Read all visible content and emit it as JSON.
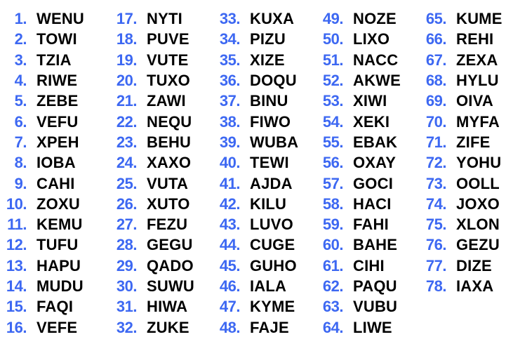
{
  "colors": {
    "number": "#3d68f2",
    "word": "#000000",
    "background": "#ffffff"
  },
  "items": [
    {
      "n": "1.",
      "w": "WENU"
    },
    {
      "n": "2.",
      "w": "TOWI"
    },
    {
      "n": "3.",
      "w": "TZIA"
    },
    {
      "n": "4.",
      "w": "RIWE"
    },
    {
      "n": "5.",
      "w": "ZEBE"
    },
    {
      "n": "6.",
      "w": "VEFU"
    },
    {
      "n": "7.",
      "w": "XPEH"
    },
    {
      "n": "8.",
      "w": "IOBA"
    },
    {
      "n": "9.",
      "w": "CAHI"
    },
    {
      "n": "10.",
      "w": "ZOXU"
    },
    {
      "n": "11.",
      "w": "KEMU"
    },
    {
      "n": "12.",
      "w": "TUFU"
    },
    {
      "n": "13.",
      "w": "HAPU"
    },
    {
      "n": "14.",
      "w": "MUDU"
    },
    {
      "n": "15.",
      "w": "FAQI"
    },
    {
      "n": "16.",
      "w": "VEFE"
    },
    {
      "n": "17.",
      "w": "NYTI"
    },
    {
      "n": "18.",
      "w": "PUVE"
    },
    {
      "n": "19.",
      "w": "VUTE"
    },
    {
      "n": "20.",
      "w": "TUXO"
    },
    {
      "n": "21.",
      "w": "ZAWI"
    },
    {
      "n": "22.",
      "w": "NEQU"
    },
    {
      "n": "23.",
      "w": "BEHU"
    },
    {
      "n": "24.",
      "w": "XAXO"
    },
    {
      "n": "25.",
      "w": "VUTA"
    },
    {
      "n": "26.",
      "w": "XUTO"
    },
    {
      "n": "27.",
      "w": "FEZU"
    },
    {
      "n": "28.",
      "w": "GEGU"
    },
    {
      "n": "29.",
      "w": "QADO"
    },
    {
      "n": "30.",
      "w": "SUWU"
    },
    {
      "n": "31.",
      "w": "HIWA"
    },
    {
      "n": "32.",
      "w": "ZUKE"
    },
    {
      "n": "33.",
      "w": "KUXA"
    },
    {
      "n": "34.",
      "w": "PIZU"
    },
    {
      "n": "35.",
      "w": "XIZE"
    },
    {
      "n": "36.",
      "w": "DOQU"
    },
    {
      "n": "37.",
      "w": "BINU"
    },
    {
      "n": "38.",
      "w": "FIWO"
    },
    {
      "n": "39.",
      "w": "WUBA"
    },
    {
      "n": "40.",
      "w": "TEWI"
    },
    {
      "n": "41.",
      "w": "AJDA"
    },
    {
      "n": "42.",
      "w": "KILU"
    },
    {
      "n": "43.",
      "w": "LUVO"
    },
    {
      "n": "44.",
      "w": "CUGE"
    },
    {
      "n": "45.",
      "w": "GUHO"
    },
    {
      "n": "46.",
      "w": "IALA"
    },
    {
      "n": "47.",
      "w": "KYME"
    },
    {
      "n": "48.",
      "w": "FAJE"
    },
    {
      "n": "49.",
      "w": "NOZE"
    },
    {
      "n": "50.",
      "w": "LIXO"
    },
    {
      "n": "51.",
      "w": "NACC"
    },
    {
      "n": "52.",
      "w": "AKWE"
    },
    {
      "n": "53.",
      "w": "XIWI"
    },
    {
      "n": "54.",
      "w": "XEKI"
    },
    {
      "n": "55.",
      "w": "EBAK"
    },
    {
      "n": "56.",
      "w": "OXAY"
    },
    {
      "n": "57.",
      "w": "GOCI"
    },
    {
      "n": "58.",
      "w": "HACI"
    },
    {
      "n": "59.",
      "w": "FAHI"
    },
    {
      "n": "60.",
      "w": "BAHE"
    },
    {
      "n": "61.",
      "w": "CIHI"
    },
    {
      "n": "62.",
      "w": "PAQU"
    },
    {
      "n": "63.",
      "w": "VUBU"
    },
    {
      "n": "64.",
      "w": "LIWE"
    },
    {
      "n": "65.",
      "w": "KUME"
    },
    {
      "n": "66.",
      "w": "REHI"
    },
    {
      "n": "67.",
      "w": "ZEXA"
    },
    {
      "n": "68.",
      "w": "HYLU"
    },
    {
      "n": "69.",
      "w": "OIVA"
    },
    {
      "n": "70.",
      "w": "MYFA"
    },
    {
      "n": "71.",
      "w": "ZIFE"
    },
    {
      "n": "72.",
      "w": "YOHU"
    },
    {
      "n": "73.",
      "w": "OOLL"
    },
    {
      "n": "74.",
      "w": "JOXO"
    },
    {
      "n": "75.",
      "w": "XLON"
    },
    {
      "n": "76.",
      "w": "GEZU"
    },
    {
      "n": "77.",
      "w": "DIZE"
    },
    {
      "n": "78.",
      "w": "IAXA"
    }
  ]
}
